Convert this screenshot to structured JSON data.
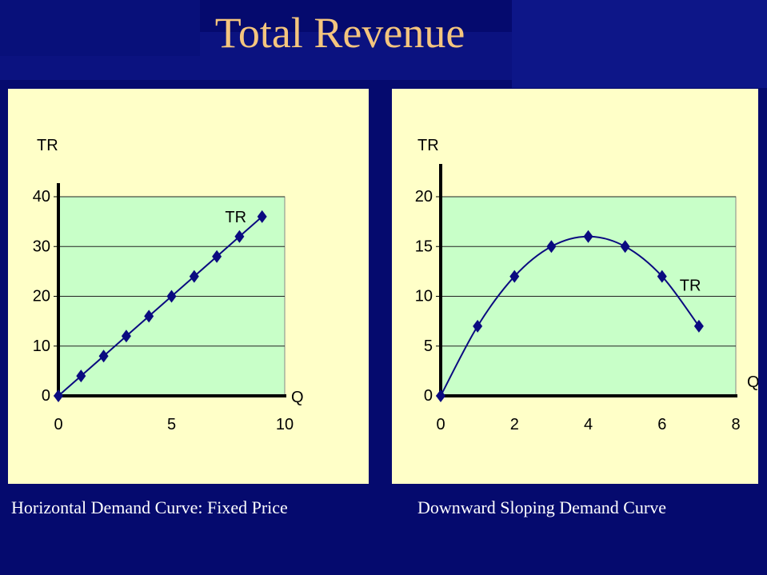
{
  "slide": {
    "title": "Total Revenue",
    "caption_left": "Horizontal Demand Curve: Fixed Price",
    "caption_right": "Downward Sloping Demand Curve"
  },
  "colors": {
    "background": "#050a6e",
    "title": "#f4c57e",
    "panel": "#ffffc8",
    "plot_area": "#c8ffc8",
    "series": "#0a0a80",
    "caption": "#ffffff"
  },
  "chart_data": [
    {
      "type": "line",
      "title": "",
      "xlabel": "Q",
      "ylabel": "TR",
      "xlim": [
        0,
        10
      ],
      "ylim": [
        0,
        40
      ],
      "x_ticks": [
        "0",
        "5",
        "10"
      ],
      "y_ticks": [
        "0",
        "10",
        "20",
        "30",
        "40"
      ],
      "grid": true,
      "markers": "diamond",
      "series": [
        {
          "name": "TR",
          "x": [
            0,
            1,
            2,
            3,
            4,
            5,
            6,
            7,
            8,
            9
          ],
          "values": [
            0,
            4,
            8,
            12,
            16,
            20,
            24,
            28,
            32,
            36
          ]
        }
      ]
    },
    {
      "type": "line",
      "title": "",
      "xlabel": "Q",
      "ylabel": "TR",
      "xlim": [
        0,
        8
      ],
      "ylim": [
        0,
        20
      ],
      "x_ticks": [
        "0",
        "2",
        "4",
        "6",
        "8"
      ],
      "y_ticks": [
        "0",
        "5",
        "10",
        "15",
        "20"
      ],
      "grid": true,
      "markers": "diamond",
      "series": [
        {
          "name": "TR",
          "x": [
            0,
            1,
            2,
            3,
            4,
            5,
            6,
            7
          ],
          "values": [
            0,
            7,
            12,
            15,
            16,
            15,
            12,
            7
          ]
        }
      ]
    }
  ]
}
